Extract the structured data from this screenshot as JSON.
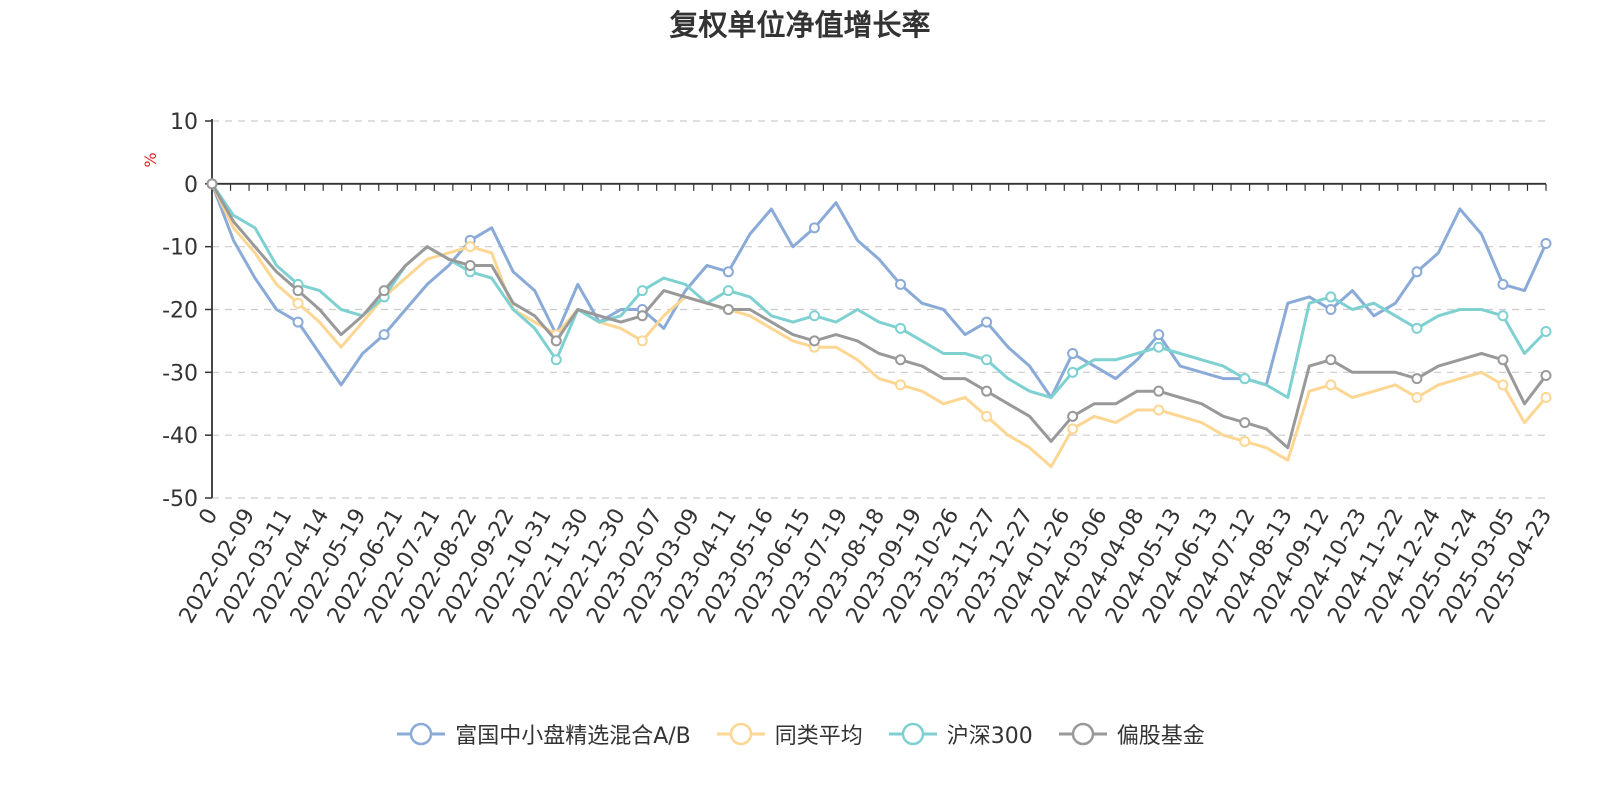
{
  "chart_data": {
    "type": "line",
    "title": "复权单位净值增长率",
    "ylabel": "%",
    "ylim": [
      -50,
      10
    ],
    "yticks": [
      "10",
      "0",
      "-10",
      "-20",
      "-30",
      "-40",
      "-50"
    ],
    "xlabels": [
      "0",
      "2022-02-09",
      "2022-03-11",
      "2022-04-14",
      "2022-05-19",
      "2022-06-21",
      "2022-07-21",
      "2022-08-22",
      "2022-09-22",
      "2022-10-31",
      "2022-11-30",
      "2022-12-30",
      "2023-02-07",
      "2023-03-09",
      "2023-04-11",
      "2023-05-16",
      "2023-06-15",
      "2023-07-19",
      "2023-08-18",
      "2023-09-19",
      "2023-10-26",
      "2023-11-27",
      "2023-12-27",
      "2024-01-26",
      "2024-03-06",
      "2024-04-08",
      "2024-05-13",
      "2024-06-13",
      "2024-07-12",
      "2024-08-13",
      "2024-09-12",
      "2024-10-23",
      "2024-11-22",
      "2024-12-24",
      "2025-01-24",
      "2025-03-05",
      "2025-04-23"
    ],
    "grid": true,
    "legend_position": "bottom",
    "series": [
      {
        "name": "富国中小盘精选混合A/B",
        "color": "#8aaad8",
        "values": [
          0,
          -9,
          -15,
          -20,
          -22,
          -27,
          -32,
          -27,
          -24,
          -20,
          -16,
          -13,
          -9,
          -7,
          -14,
          -17,
          -24,
          -16,
          -22,
          -20,
          -20,
          -23,
          -17,
          -13,
          -14,
          -8,
          -4,
          -10,
          -7,
          -3,
          -9,
          -12,
          -16,
          -19,
          -20,
          -24,
          -22,
          -26,
          -29,
          -34,
          -27,
          -29,
          -31,
          -28,
          -24,
          -29,
          -30,
          -31,
          -31,
          -32,
          -19,
          -18,
          -20,
          -17,
          -21,
          -19,
          -14,
          -11,
          -4,
          -8,
          -16,
          -17,
          -9.5
        ]
      },
      {
        "name": "同类平均",
        "color": "#fcd692",
        "values": [
          0,
          -7,
          -11,
          -16,
          -19,
          -22,
          -26,
          -22,
          -18,
          -15,
          -12,
          -11,
          -10,
          -11,
          -20,
          -22,
          -24,
          -20,
          -22,
          -23,
          -25,
          -21,
          -18,
          -19,
          -20,
          -21,
          -23,
          -25,
          -26,
          -26,
          -28,
          -31,
          -32,
          -33,
          -35,
          -34,
          -37,
          -40,
          -42,
          -45,
          -39,
          -37,
          -38,
          -36,
          -36,
          -37,
          -38,
          -40,
          -41,
          -42,
          -44,
          -33,
          -32,
          -34,
          -33,
          -32,
          -34,
          -32,
          -31,
          -30,
          -32,
          -38,
          -34
        ]
      },
      {
        "name": "沪深300",
        "color": "#7fd1d1",
        "values": [
          0,
          -5,
          -7,
          -13,
          -16,
          -17,
          -20,
          -21,
          -18,
          -13,
          -10,
          -12,
          -14,
          -15,
          -20,
          -23,
          -28,
          -20,
          -22,
          -21,
          -17,
          -15,
          -16,
          -19,
          -17,
          -18,
          -21,
          -22,
          -21,
          -22,
          -20,
          -22,
          -23,
          -25,
          -27,
          -27,
          -28,
          -31,
          -33,
          -34,
          -30,
          -28,
          -28,
          -27,
          -26,
          -27,
          -28,
          -29,
          -31,
          -32,
          -34,
          -19,
          -18,
          -20,
          -19,
          -21,
          -23,
          -21,
          -20,
          -20,
          -21,
          -27,
          -23.5
        ]
      },
      {
        "name": "偏股基金",
        "color": "#999999",
        "values": [
          0,
          -6,
          -10,
          -14,
          -17,
          -20,
          -24,
          -21,
          -17,
          -13,
          -10,
          -12,
          -13,
          -13,
          -19,
          -21,
          -25,
          -20,
          -21,
          -22,
          -21,
          -17,
          -18,
          -19,
          -20,
          -20,
          -22,
          -24,
          -25,
          -24,
          -25,
          -27,
          -28,
          -29,
          -31,
          -31,
          -33,
          -35,
          -37,
          -41,
          -37,
          -35,
          -35,
          -33,
          -33,
          -34,
          -35,
          -37,
          -38,
          -39,
          -42,
          -29,
          -28,
          -30,
          -30,
          -30,
          -31,
          -29,
          -28,
          -27,
          -28,
          -35,
          -30.5
        ]
      }
    ]
  }
}
